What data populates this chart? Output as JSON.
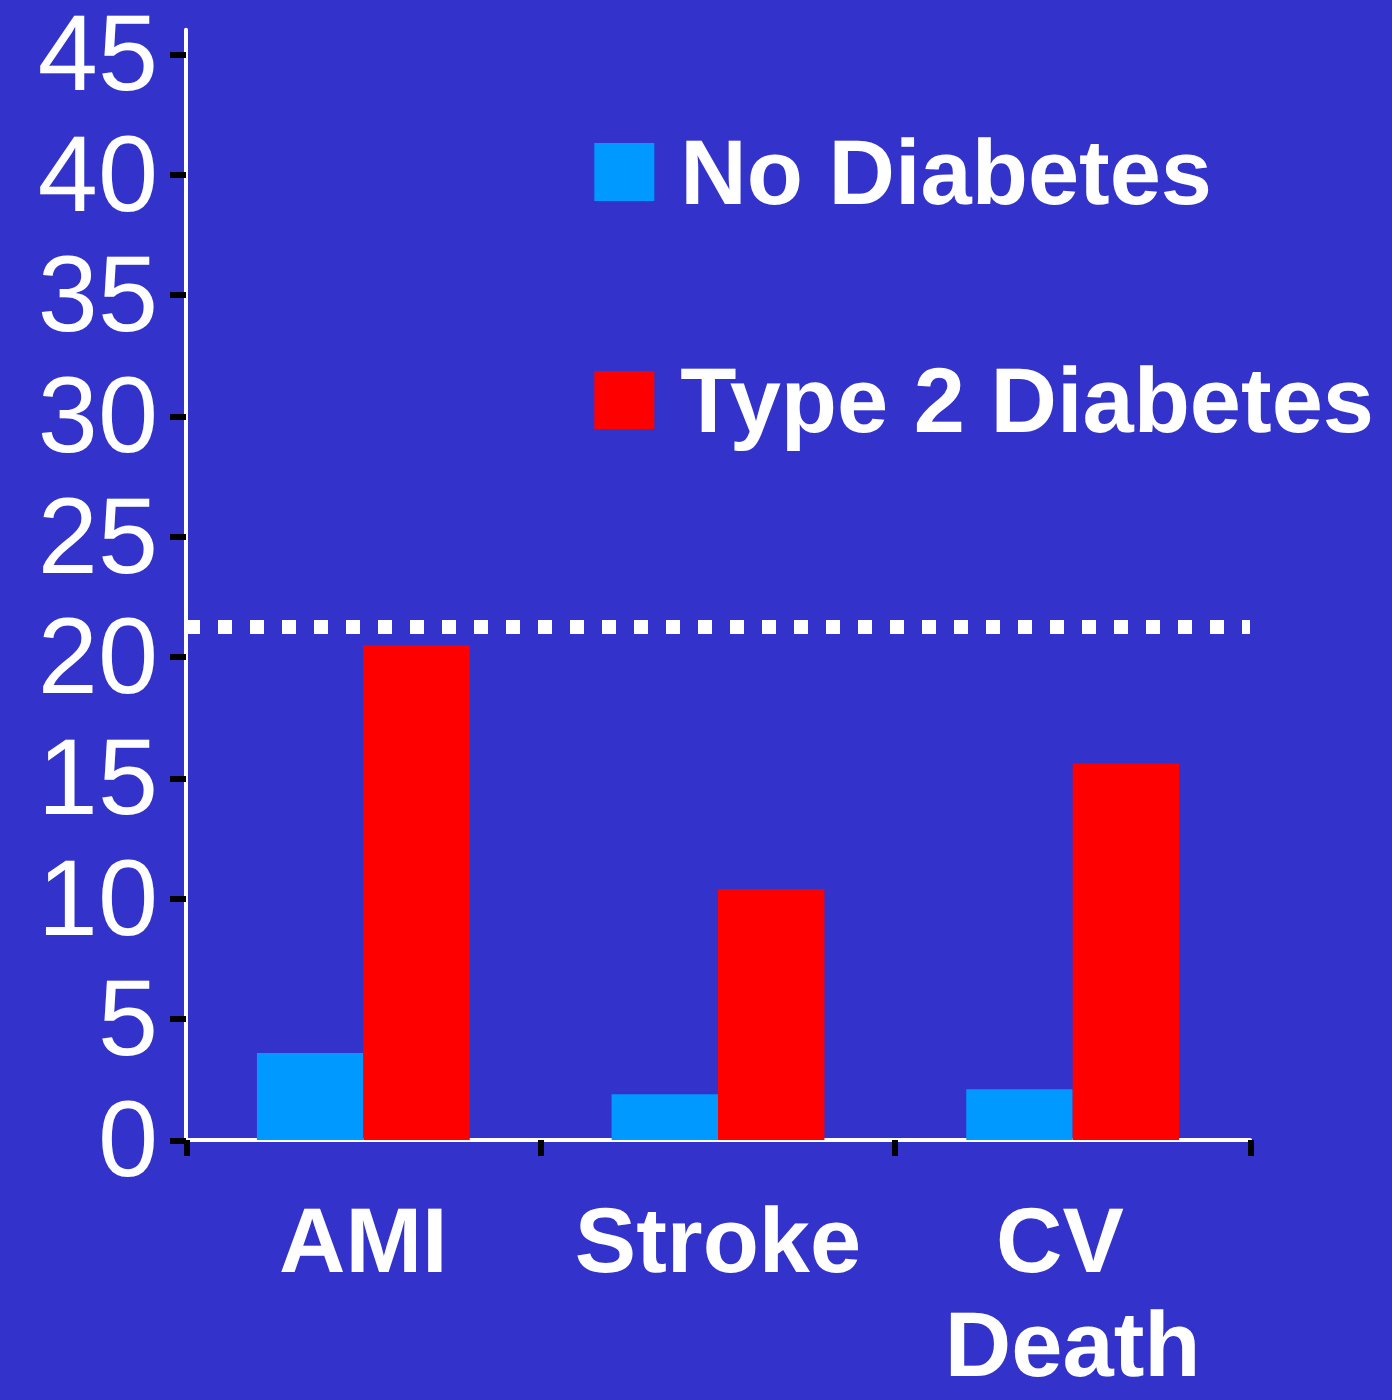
{
  "chart_data": {
    "type": "bar",
    "categories": [
      "AMI",
      "Stroke",
      "CV Death"
    ],
    "series": [
      {
        "name": "No Diabetes",
        "color": "#0099ff",
        "values": [
          3.6,
          1.9,
          2.1
        ]
      },
      {
        "name": "Type 2 Diabetes",
        "color": "#ff0000",
        "values": [
          20.5,
          10.4,
          15.6
        ]
      }
    ],
    "ylim": [
      0,
      46
    ],
    "yticks": [
      0,
      5,
      10,
      15,
      20,
      25,
      30,
      35,
      40,
      45
    ],
    "ref_lines": [
      {
        "axis": "y",
        "value": 21.3,
        "color": "#ffffff",
        "line_style": "dotted"
      }
    ],
    "legend": "top right"
  }
}
